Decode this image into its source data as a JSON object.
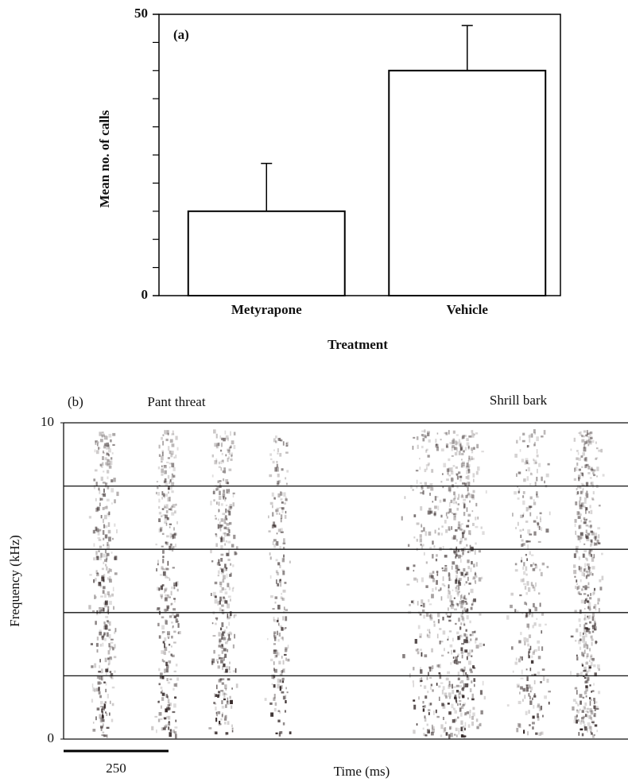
{
  "chart_data": [
    {
      "type": "bar",
      "panel_label": "(a)",
      "categories": [
        "Metyrapone",
        "Vehicle"
      ],
      "values": [
        15,
        40
      ],
      "errors": [
        8.5,
        8
      ],
      "ylabel": "Mean no. of calls",
      "xlabel": "Treatment",
      "ylim": [
        0,
        50
      ],
      "yticks": [
        0,
        50
      ],
      "yminorticks": [
        5,
        10,
        15,
        20,
        25,
        30,
        35,
        40,
        45
      ],
      "color": "#ffffff",
      "edgecolor": "#000000"
    },
    {
      "type": "spectrogram",
      "panel_label": "(b)",
      "annotations": [
        "Pant threat",
        "Shrill bark"
      ],
      "ylabel": "Frequency (kHz)",
      "xlabel": "Time (ms)",
      "ylim": [
        0,
        10
      ],
      "yticks": [
        0,
        10
      ],
      "hlines": [
        2,
        4,
        6,
        8
      ],
      "xlim": [
        0,
        1345
      ],
      "scale_bar": 250
    }
  ]
}
